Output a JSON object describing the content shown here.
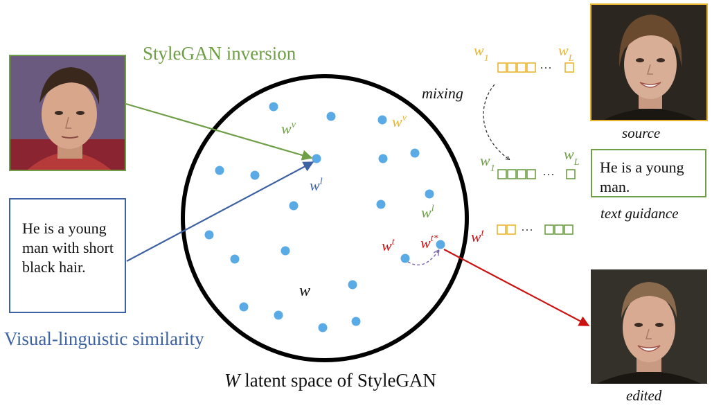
{
  "labels": {
    "inversion_title": "StyleGAN inversion",
    "similarity_title": "Visual-linguistic similarity",
    "latent_caption_italic": "W",
    "latent_caption_rest": " latent space of StyleGAN",
    "text_input": "He is a young man with short black hair.",
    "text_guidance_box": "He is a young man.",
    "source_caption": "source",
    "text_guidance_caption": "text guidance",
    "edited_caption": "edited",
    "mixing": "mixing",
    "w_center": "w",
    "ellipsis": "···"
  },
  "vectors": {
    "w_base": "w",
    "sup_v": "v",
    "sup_l": "l",
    "sup_t": "t",
    "sup_t_star": "t*",
    "sub_1": "1",
    "sub_L": "L"
  },
  "photos": {
    "input_face": "face-photo-young-man",
    "source_face": "face-photo-woman",
    "edited_face": "face-photo-man-edited"
  },
  "colors": {
    "green": "#6e9e45",
    "blue": "#3c62a4",
    "yellow": "#e9b52f",
    "red": "#cc1111",
    "dot": "#5aaae6",
    "title_green": "#6e9e45",
    "title_blue": "#3c62a4"
  }
}
